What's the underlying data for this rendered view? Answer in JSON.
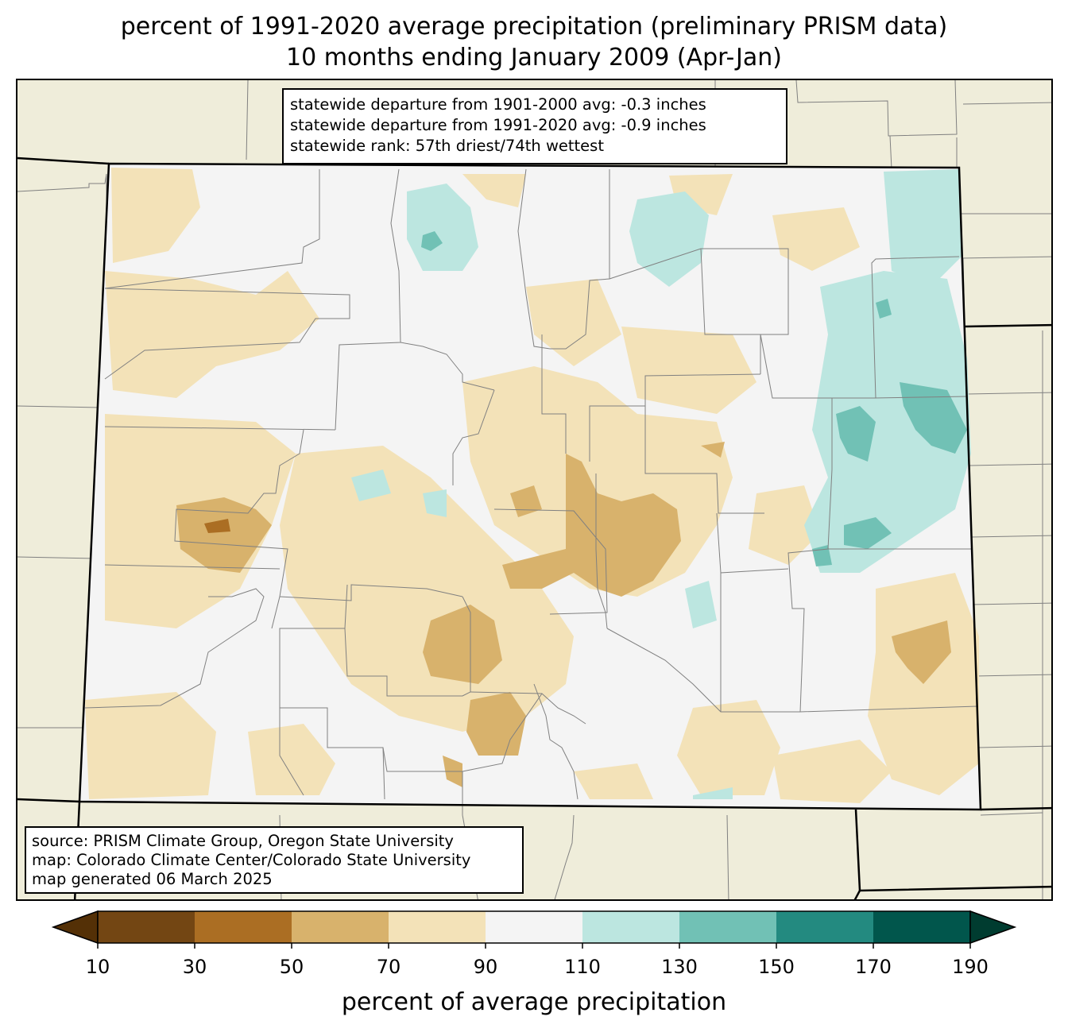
{
  "title_line1": "percent of 1991-2020 average precipitation (preliminary PRISM data)",
  "title_line2": "10 months ending January 2009 (Apr-Jan)",
  "stats": {
    "line1": "statewide departure from 1901-2000 avg: -0.3 inches",
    "line2": "statewide departure from 1991-2020 avg: -0.9 inches",
    "line3": "statewide rank: 57th driest/74th wettest"
  },
  "source": {
    "line1": "source: PRISM Climate Group, Oregon State University",
    "line2": "map: Colorado Climate Center/Colorado State University",
    "line3": "map generated 06 March 2025"
  },
  "colorbar": {
    "label": "percent of average precipitation",
    "ticks": [
      "10",
      "30",
      "50",
      "70",
      "90",
      "110",
      "130",
      "150",
      "170",
      "190"
    ],
    "colors": [
      "#734613",
      "#ab6e23",
      "#d8b26c",
      "#f3e2b8",
      "#f4f4f4",
      "#bce6e0",
      "#71c1b5",
      "#238a80",
      "#01564c"
    ],
    "under_color": "#543006",
    "over_color": "#003c30"
  },
  "map_colors": {
    "background": "#efedda",
    "state_fill": "#f4f4f4",
    "dry_light": "#f3e2b8",
    "dry_mid": "#d8b26c",
    "dry_dark": "#ab6e23",
    "wet_light": "#bce6e0",
    "wet_mid": "#71c1b5"
  }
}
